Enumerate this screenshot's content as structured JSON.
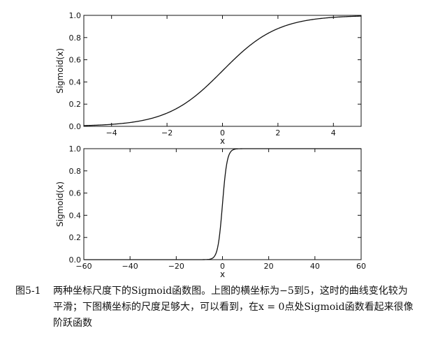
{
  "chart_data": [
    {
      "type": "line",
      "function": "sigmoid",
      "x": [
        -5,
        -4,
        -3,
        -2,
        -1,
        0,
        1,
        2,
        3,
        4,
        5
      ],
      "y": [
        0.0067,
        0.018,
        0.047,
        0.119,
        0.269,
        0.5,
        0.731,
        0.881,
        0.953,
        0.982,
        0.9933
      ],
      "xlim": [
        -5,
        5
      ],
      "ylim": [
        0.0,
        1.0
      ],
      "xticks": [
        "−4",
        "−2",
        "0",
        "2",
        "4"
      ],
      "xtick_values": [
        -4,
        -2,
        0,
        2,
        4
      ],
      "yticks": [
        "0.0",
        "0.2",
        "0.4",
        "0.6",
        "0.8",
        "1.0"
      ],
      "ytick_values": [
        0,
        0.2,
        0.4,
        0.6,
        0.8,
        1.0
      ],
      "xlabel": "x",
      "ylabel": "Sigmoid(x)",
      "grid": false,
      "color": "#111111"
    },
    {
      "type": "line",
      "function": "sigmoid",
      "x": [
        -60,
        -40,
        -20,
        -6,
        -4,
        -2,
        0,
        2,
        4,
        6,
        20,
        40,
        60
      ],
      "y": [
        0.0,
        0.0,
        0.0,
        0.0025,
        0.018,
        0.119,
        0.5,
        0.881,
        0.982,
        0.9975,
        1.0,
        1.0,
        1.0
      ],
      "xlim": [
        -60,
        60
      ],
      "ylim": [
        0.0,
        1.0
      ],
      "xticks": [
        "−60",
        "−40",
        "−20",
        "0",
        "20",
        "40",
        "60"
      ],
      "xtick_values": [
        -60,
        -40,
        -20,
        0,
        20,
        40,
        60
      ],
      "yticks": [
        "0.0",
        "0.2",
        "0.4",
        "0.6",
        "0.8",
        "1.0"
      ],
      "ytick_values": [
        0,
        0.2,
        0.4,
        0.6,
        0.8,
        1.0
      ],
      "xlabel": "x",
      "ylabel": "Sigmoid(x)",
      "grid": false,
      "color": "#111111"
    }
  ],
  "caption": {
    "number": "图5-1",
    "text": "两种坐标尺度下的Sigmoid函数图。上图的横坐标为−5到5，这时的曲线变化较为平滑；下图横坐标的尺度足够大，可以看到，在x = 0点处Sigmoid函数看起来很像阶跃函数"
  }
}
